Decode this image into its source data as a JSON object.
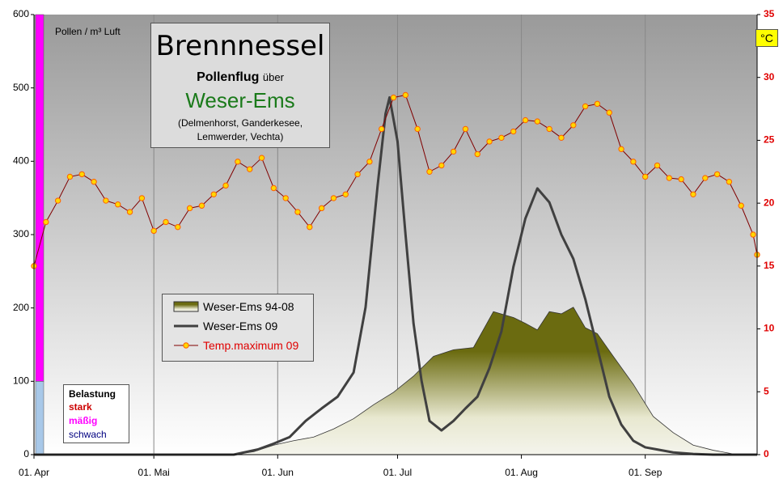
{
  "chart_data": {
    "type": "line",
    "title": "Brennnessel",
    "subtitle": "Pollenflug",
    "subtitle_connector": "über",
    "region": "Weser-Ems",
    "region_note": "(Delmenhorst, Ganderkesee, Lemwerder, Vechta)",
    "y_label": "Pollen / m³ Luft",
    "y2_label": "°C",
    "xlim": [
      0,
      181
    ],
    "xticks": [
      {
        "value": 0,
        "label": "01. Apr"
      },
      {
        "value": 30,
        "label": "01. Mai"
      },
      {
        "value": 61,
        "label": "01. Jun"
      },
      {
        "value": 91,
        "label": "01. Jul"
      },
      {
        "value": 122,
        "label": "01. Aug"
      },
      {
        "value": 153,
        "label": "01. Sep"
      }
    ],
    "ylim": [
      0,
      600
    ],
    "yticks": [
      0,
      100,
      200,
      300,
      400,
      500,
      600
    ],
    "y2lim": [
      0,
      35
    ],
    "y2ticks": [
      0,
      5,
      10,
      15,
      20,
      25,
      30,
      35
    ],
    "grid": "x",
    "load_bands": [
      {
        "from": 0,
        "to": 100,
        "color": "#a8c8e8"
      },
      {
        "from": 100,
        "to": 600,
        "color": "#ff00ff"
      }
    ],
    "load_legend": {
      "title": "Belastung",
      "items": [
        {
          "label": "stark",
          "color": "#cc0000"
        },
        {
          "label": "mäßig",
          "color": "#ff00ff"
        },
        {
          "label": "schwach",
          "color": "#000080"
        }
      ]
    },
    "series": [
      {
        "name": "Weser-Ems 94-08",
        "kind": "area",
        "color": "#6b6b10",
        "x": [
          0,
          50,
          55,
          60,
          65,
          70,
          75,
          80,
          85,
          90,
          95,
          100,
          105,
          110,
          115,
          120,
          123,
          126,
          129,
          132,
          135,
          138,
          141,
          145,
          150,
          155,
          160,
          165,
          170,
          175,
          181
        ],
        "values": [
          0,
          0,
          4,
          13,
          19,
          24,
          35,
          49,
          68,
          85,
          107,
          134,
          143,
          146,
          195,
          187,
          179,
          170,
          195,
          192,
          201,
          173,
          165,
          134,
          96,
          52,
          30,
          13,
          6,
          1,
          0
        ]
      },
      {
        "name": "Weser-Ems  09",
        "kind": "line",
        "color": "#404040",
        "x": [
          0,
          50,
          56,
          60,
          64,
          68,
          72,
          76,
          80,
          83,
          86,
          88,
          89,
          91,
          93,
          95,
          97,
          99,
          102,
          105,
          108,
          111,
          114,
          117,
          120,
          123,
          126,
          129,
          132,
          135,
          138,
          141,
          144,
          147,
          150,
          153,
          156,
          160,
          165,
          170,
          181
        ],
        "values": [
          0,
          0,
          7,
          15,
          24,
          46,
          63,
          79,
          112,
          201,
          366,
          465,
          487,
          427,
          300,
          179,
          101,
          46,
          33,
          46,
          63,
          79,
          118,
          168,
          256,
          322,
          363,
          344,
          300,
          267,
          212,
          146,
          79,
          41,
          19,
          10,
          7,
          3,
          1,
          0,
          0
        ]
      },
      {
        "name": "Temp.maximum 09",
        "kind": "marker-line",
        "axis": "y2",
        "color": "#800000",
        "marker_color": "#ffd700",
        "x": [
          0,
          3,
          6,
          9,
          12,
          15,
          18,
          21,
          24,
          27,
          30,
          33,
          36,
          39,
          42,
          45,
          48,
          51,
          54,
          57,
          60,
          63,
          66,
          69,
          72,
          75,
          78,
          81,
          84,
          87,
          90,
          93,
          96,
          99,
          102,
          105,
          108,
          111,
          114,
          117,
          120,
          123,
          126,
          129,
          132,
          135,
          138,
          141,
          144,
          147,
          150,
          153,
          156,
          159,
          162,
          165,
          168,
          171,
          174,
          177,
          180,
          181
        ],
        "values": [
          15.0,
          18.5,
          20.2,
          22.1,
          22.3,
          21.7,
          20.2,
          19.9,
          19.3,
          20.4,
          17.8,
          18.5,
          18.1,
          19.6,
          19.8,
          20.7,
          21.4,
          23.3,
          22.7,
          23.6,
          21.2,
          20.4,
          19.3,
          18.1,
          19.6,
          20.4,
          20.7,
          22.3,
          23.3,
          25.9,
          28.4,
          28.6,
          25.9,
          22.5,
          23.0,
          24.1,
          25.9,
          23.9,
          24.9,
          25.2,
          25.7,
          26.6,
          26.5,
          25.9,
          25.2,
          26.2,
          27.7,
          27.9,
          27.2,
          24.3,
          23.3,
          22.1,
          23.0,
          22.0,
          21.9,
          20.7,
          22.0,
          22.3,
          21.7,
          19.8,
          17.5,
          15.9
        ]
      }
    ]
  }
}
